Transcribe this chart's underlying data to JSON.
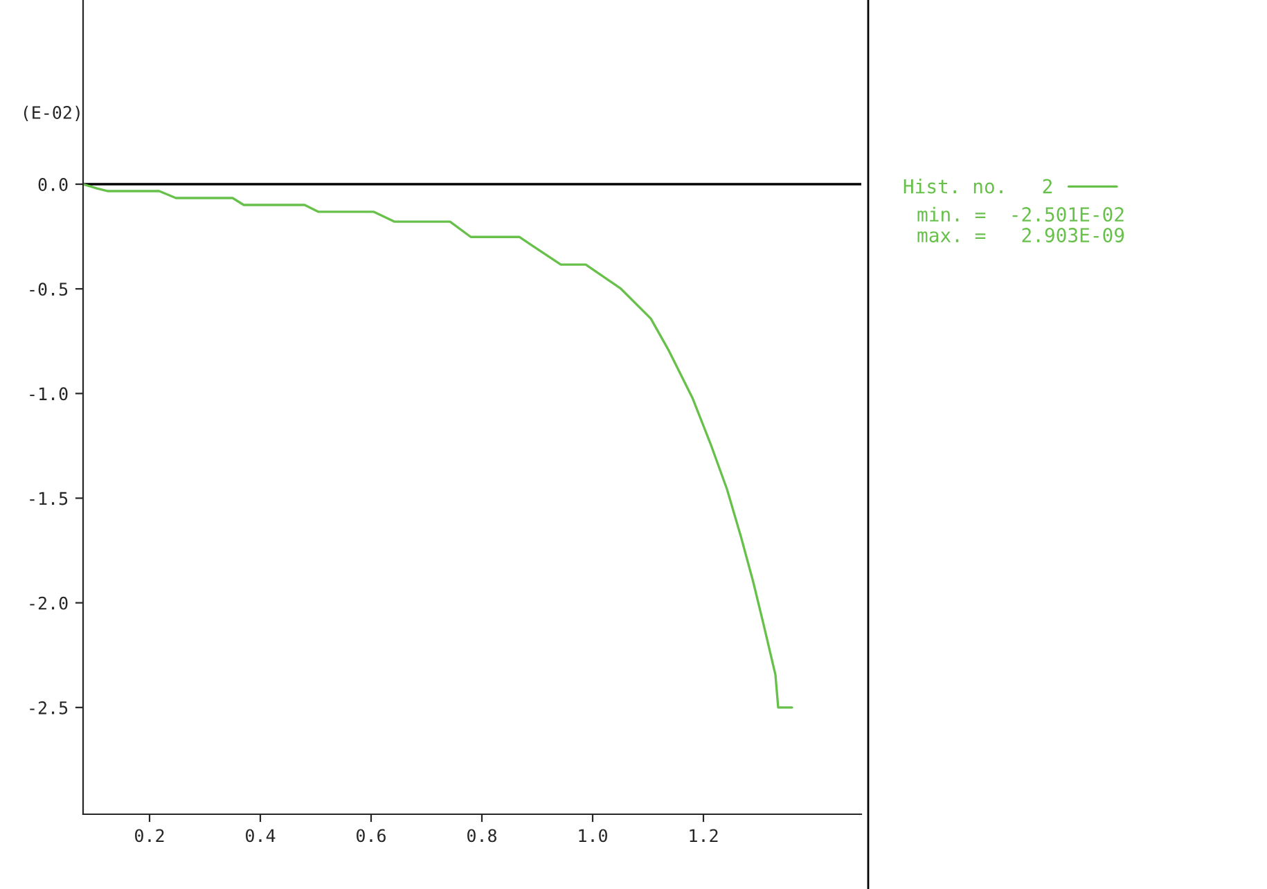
{
  "chart_data": {
    "type": "line",
    "ylabel": "(E-02)",
    "x": [
      0.08,
      0.105,
      0.125,
      0.2175,
      0.2475,
      0.35,
      0.37,
      0.48,
      0.505,
      0.605,
      0.6425,
      0.7425,
      0.78,
      0.8675,
      0.9425,
      0.9875,
      1.05,
      1.105,
      1.1375,
      1.18,
      1.2125,
      1.2425,
      1.2675,
      1.29,
      1.31,
      1.33,
      1.335,
      1.36
    ],
    "series": [
      {
        "name": "Hist. no.   2",
        "color": "#66c04a",
        "values": [
          0,
          -0.02,
          -0.033,
          -0.033,
          -0.066,
          -0.066,
          -0.099,
          -0.099,
          -0.132,
          -0.132,
          -0.179,
          -0.179,
          -0.252,
          -0.252,
          -0.384,
          -0.384,
          -0.497,
          -0.642,
          -0.795,
          -1.02,
          -1.238,
          -1.457,
          -1.682,
          -1.901,
          -2.119,
          -2.344,
          -2.5,
          -2.5
        ]
      }
    ],
    "xlim": [
      0.08,
      1.485
    ],
    "xticks": [
      0.2,
      0.4,
      0.6,
      {
        "value": 0.8,
        "label": "0.8"
      },
      {
        "value": 1.0,
        "label": "1.0"
      },
      1.2
    ],
    "ylim": [
      -3.01,
      0.88
    ],
    "yticks": [
      {
        "value": 0,
        "label": "0.0"
      },
      {
        "value": -0.5,
        "label": "-0.5"
      },
      {
        "value": -1.0,
        "label": "-1.0"
      },
      {
        "value": -1.5,
        "label": "-1.5"
      },
      {
        "value": -2.0,
        "label": "-2.0"
      },
      {
        "value": -2.5,
        "label": "-2.5"
      }
    ],
    "ref_lines": [
      {
        "axis": "y",
        "value": 0,
        "color": "#000000"
      }
    ],
    "annotations": [
      "min. =  -2.501E-02",
      "max. =   2.903E-09"
    ],
    "legend": "right",
    "grid": false,
    "marker": "none",
    "line_style": "solid"
  }
}
